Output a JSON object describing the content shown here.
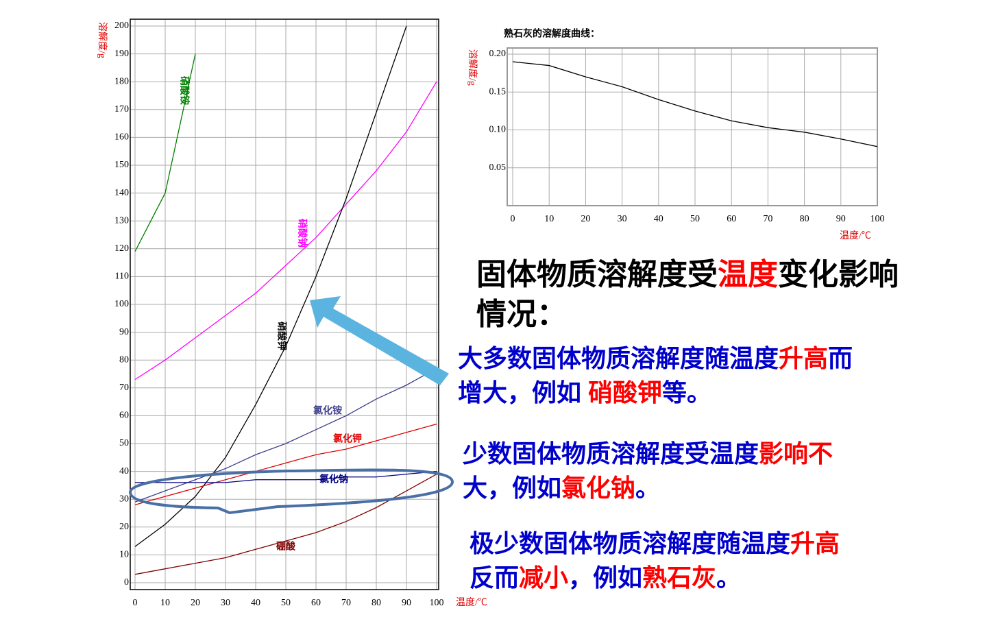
{
  "chart_data": [
    {
      "type": "line",
      "y_label": "溶解度/g",
      "x_label": "温度/℃",
      "x": [
        0,
        10,
        20,
        30,
        40,
        50,
        60,
        70,
        80,
        90,
        100
      ],
      "xlim": [
        0,
        100
      ],
      "xticks": [
        0,
        10,
        20,
        30,
        40,
        50,
        60,
        70,
        80,
        90,
        100
      ],
      "ylim": [
        0,
        200
      ],
      "yticks": [
        0,
        10,
        20,
        30,
        40,
        50,
        60,
        70,
        80,
        90,
        100,
        110,
        120,
        130,
        140,
        150,
        160,
        170,
        180,
        190,
        200
      ],
      "grid": true,
      "series": [
        {
          "name": "硝酸铵",
          "color": "#008000",
          "values": [
            119,
            140,
            190,
            null,
            null,
            null,
            null,
            null,
            null,
            null,
            null
          ]
        },
        {
          "name": "硝酸钠",
          "color": "#ff00ff",
          "values": [
            73,
            80,
            88,
            96,
            104,
            114,
            124,
            136,
            148,
            162,
            180
          ]
        },
        {
          "name": "硝酸钾",
          "color": "#000000",
          "values": [
            13,
            21,
            31,
            45,
            64,
            85,
            110,
            138,
            169,
            200,
            null
          ]
        },
        {
          "name": "氯化铵",
          "color": "#3c3c8c",
          "values": [
            29,
            33,
            37,
            41,
            46,
            50,
            55,
            60,
            66,
            71,
            77
          ]
        },
        {
          "name": "氯化钾",
          "color": "#e00000",
          "values": [
            28,
            31,
            34,
            37,
            40,
            43,
            46,
            48,
            51,
            54,
            57
          ]
        },
        {
          "name": "氯化钠",
          "color": "#000080",
          "values": [
            36,
            36,
            36,
            36,
            37,
            37,
            37,
            38,
            38,
            39,
            40
          ]
        },
        {
          "name": "硼酸",
          "color": "#800000",
          "values": [
            3,
            5,
            7,
            9,
            12,
            15,
            18,
            22,
            27,
            33,
            39
          ]
        }
      ]
    },
    {
      "type": "line",
      "title": "熟石灰的溶解度曲线：",
      "y_label": "溶解度/g",
      "x_label": "温度/℃",
      "x": [
        0,
        10,
        20,
        30,
        40,
        50,
        60,
        70,
        80,
        90,
        100
      ],
      "xlim": [
        0,
        100
      ],
      "xticks": [
        0,
        10,
        20,
        30,
        40,
        50,
        60,
        70,
        80,
        90,
        100
      ],
      "ylim": [
        0,
        0.2
      ],
      "yticks": [
        0.05,
        {
          "value": 0.1,
          "label": "0.10"
        },
        0.15,
        {
          "value": 0.2,
          "label": "0.20"
        }
      ],
      "grid": true,
      "series": [
        {
          "name": "熟石灰",
          "color": "#000000",
          "values": [
            0.19,
            0.185,
            0.17,
            0.157,
            0.14,
            0.125,
            0.112,
            0.103,
            0.097,
            0.088,
            0.078
          ]
        }
      ]
    }
  ],
  "text_blocks": [
    {
      "lines": [
        [
          {
            "text": "固体物质溶解度受",
            "color": "#000000"
          },
          {
            "text": "温度",
            "color": "#ff0000"
          },
          {
            "text": "变化影响",
            "color": "#000000"
          }
        ],
        [
          {
            "text": "情况：",
            "color": "#000000"
          }
        ]
      ]
    },
    {
      "lines": [
        [
          {
            "text": "大多数固体物质溶解度随温度",
            "color": "#0000cc"
          },
          {
            "text": "升高",
            "color": "#ff0000"
          },
          {
            "text": "而",
            "color": "#0000cc"
          }
        ],
        [
          {
            "text": "增大，例如 ",
            "color": "#0000cc"
          },
          {
            "text": "硝酸钾",
            "color": "#ff0000"
          },
          {
            "text": "等。",
            "color": "#0000cc"
          }
        ]
      ]
    },
    {
      "lines": [
        [
          {
            "text": "少数固体物质溶解度受温度",
            "color": "#0000cc"
          },
          {
            "text": "影响不",
            "color": "#ff0000"
          }
        ],
        [
          {
            "text": "大，例如",
            "color": "#0000cc"
          },
          {
            "text": "氯化钠",
            "color": "#ff0000"
          },
          {
            "text": "。",
            "color": "#0000cc"
          }
        ]
      ]
    },
    {
      "lines": [
        [
          {
            "text": "极少数固体物质溶解度随温度",
            "color": "#0000cc"
          },
          {
            "text": "升高",
            "color": "#ff0000"
          }
        ],
        [
          {
            "text": "反而",
            "color": "#0000cc"
          },
          {
            "text": "减小",
            "color": "#ff0000"
          },
          {
            "text": "，例如",
            "color": "#0000cc"
          },
          {
            "text": "熟石灰",
            "color": "#ff0000"
          },
          {
            "text": "。",
            "color": "#0000cc"
          }
        ]
      ]
    }
  ]
}
